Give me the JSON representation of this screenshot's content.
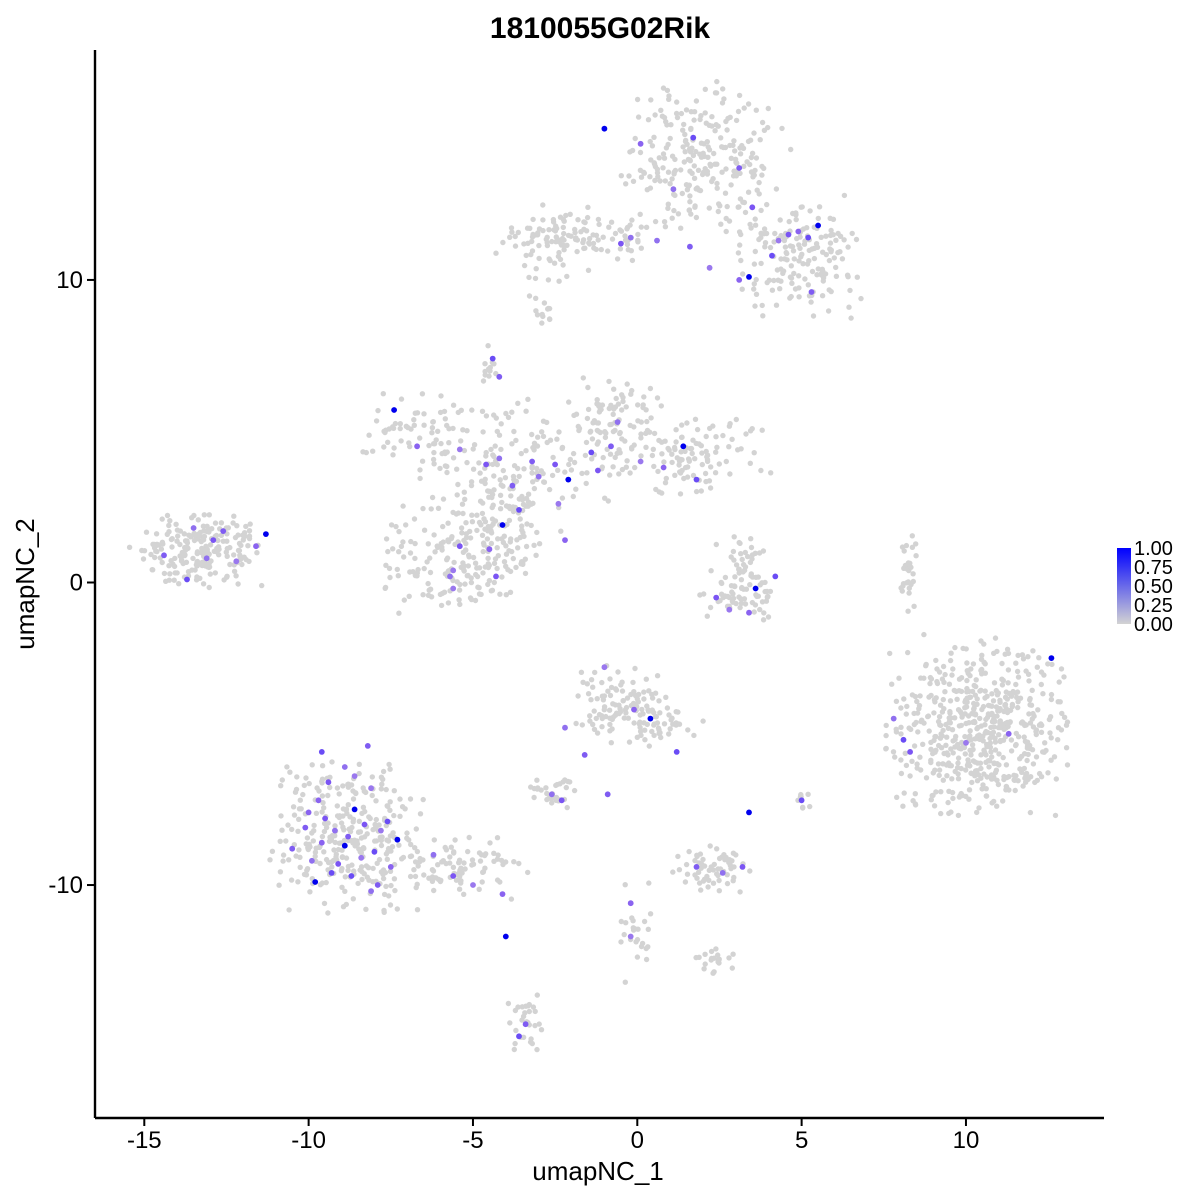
{
  "chart_data": {
    "type": "scatter",
    "title": "1810055G02Rik",
    "xlabel": "umapNC_1",
    "ylabel": "umapNC_2",
    "xlim": [
      -16.5,
      14.2
    ],
    "ylim": [
      -17.7,
      17.6
    ],
    "x_ticks": [
      -15,
      -10,
      -5,
      0,
      5,
      10
    ],
    "x_tick_labels": [
      "-15",
      "-10",
      "-5",
      "0",
      "5",
      "10"
    ],
    "y_ticks": [
      -10,
      0,
      10
    ],
    "y_tick_labels": [
      "-10",
      "0",
      "10"
    ],
    "grid": false,
    "legend": {
      "placement": "right",
      "labels": [
        "1.00",
        "0.75",
        "0.50",
        "0.25",
        "0.00"
      ],
      "values": [
        1.0,
        0.75,
        0.5,
        0.25,
        0.0
      ],
      "low_color": "#d3d3d3",
      "high_color": "#0000ff"
    },
    "clusters": [
      {
        "cx": 2.0,
        "cy": 14.0,
        "sx": 1.3,
        "sy": 1.2,
        "n": 240
      },
      {
        "cx": 4.8,
        "cy": 10.8,
        "sx": 1.0,
        "sy": 1.0,
        "n": 170
      },
      {
        "cx": -1.5,
        "cy": 11.4,
        "sx": 1.4,
        "sy": 0.35,
        "n": 90
      },
      {
        "cx": -2.6,
        "cy": 11.1,
        "sx": 0.6,
        "sy": 0.8,
        "n": 45
      },
      {
        "cx": -6.5,
        "cy": 5.0,
        "sx": 0.9,
        "sy": 0.6,
        "n": 65
      },
      {
        "cx": -3.6,
        "cy": 4.0,
        "sx": 1.4,
        "sy": 1.0,
        "n": 140
      },
      {
        "cx": -0.6,
        "cy": 5.2,
        "sx": 0.8,
        "sy": 0.8,
        "n": 80
      },
      {
        "cx": 1.5,
        "cy": 4.2,
        "sx": 1.2,
        "sy": 0.6,
        "n": 110
      },
      {
        "cx": -5.5,
        "cy": 0.8,
        "sx": 1.1,
        "sy": 0.9,
        "n": 170
      },
      {
        "cx": -4.0,
        "cy": 2.2,
        "sx": 0.8,
        "sy": 1.0,
        "n": 80
      },
      {
        "cx": -4.5,
        "cy": 7.2,
        "sx": 0.15,
        "sy": 0.35,
        "n": 12
      },
      {
        "cx": -13.3,
        "cy": 1.1,
        "sx": 1.0,
        "sy": 0.6,
        "n": 210
      },
      {
        "cx": 3.1,
        "cy": 0.3,
        "sx": 0.4,
        "sy": 0.6,
        "n": 55
      },
      {
        "cx": 3.2,
        "cy": -0.6,
        "sx": 0.6,
        "sy": 0.3,
        "n": 40
      },
      {
        "cx": 10.4,
        "cy": -4.8,
        "sx": 1.3,
        "sy": 1.4,
        "n": 560
      },
      {
        "cx": 8.3,
        "cy": 0.3,
        "sx": 0.15,
        "sy": 0.7,
        "n": 28
      },
      {
        "cx": -0.6,
        "cy": -4.0,
        "sx": 0.7,
        "sy": 0.6,
        "n": 100
      },
      {
        "cx": 0.8,
        "cy": -4.6,
        "sx": 0.6,
        "sy": 0.4,
        "n": 40
      },
      {
        "cx": -8.8,
        "cy": -8.3,
        "sx": 1.1,
        "sy": 1.2,
        "n": 300
      },
      {
        "cx": -5.5,
        "cy": -9.5,
        "sx": 1.0,
        "sy": 0.5,
        "n": 90
      },
      {
        "cx": -2.6,
        "cy": -6.9,
        "sx": 0.35,
        "sy": 0.25,
        "n": 30
      },
      {
        "cx": 2.3,
        "cy": -9.5,
        "sx": 0.6,
        "sy": 0.4,
        "n": 60
      },
      {
        "cx": 0.0,
        "cy": -11.5,
        "sx": 0.3,
        "sy": 0.8,
        "n": 25
      },
      {
        "cx": 2.3,
        "cy": -12.5,
        "sx": 0.35,
        "sy": 0.2,
        "n": 20
      },
      {
        "cx": -3.4,
        "cy": -14.7,
        "sx": 0.25,
        "sy": 0.6,
        "n": 30
      },
      {
        "cx": 5.1,
        "cy": -7.3,
        "sx": 0.12,
        "sy": 0.15,
        "n": 8
      },
      {
        "cx": -2.8,
        "cy": 9.0,
        "sx": 0.2,
        "sy": 0.25,
        "n": 12
      }
    ],
    "expressing_cells": [
      [
        -9.6,
        -5.6
      ],
      [
        -8.2,
        -5.4
      ],
      [
        -8.9,
        -6.1
      ],
      [
        -9.4,
        -6.6
      ],
      [
        -8.1,
        -6.8
      ],
      [
        -9.7,
        -7.2
      ],
      [
        -8.6,
        -7.5
      ],
      [
        -7.6,
        -7.9
      ],
      [
        -10.1,
        -8.1
      ],
      [
        -9.2,
        -8.2
      ],
      [
        -8.3,
        -8.0
      ],
      [
        -7.8,
        -8.2
      ],
      [
        -9.6,
        -8.6
      ],
      [
        -8.9,
        -8.7
      ],
      [
        -8.0,
        -8.9
      ],
      [
        -10.5,
        -8.8
      ],
      [
        -9.9,
        -9.2
      ],
      [
        -9.1,
        -9.3
      ],
      [
        -8.4,
        -9.1
      ],
      [
        -7.5,
        -9.4
      ],
      [
        -9.8,
        -9.9
      ],
      [
        -8.7,
        -9.7
      ],
      [
        -7.9,
        -10.0
      ],
      [
        -8.1,
        -10.2
      ],
      [
        -9.5,
        -7.8
      ],
      [
        -8.6,
        -6.4
      ],
      [
        -10.0,
        -7.6
      ],
      [
        -7.3,
        -8.5
      ],
      [
        -9.3,
        -9.6
      ],
      [
        -8.8,
        -8.4
      ],
      [
        -6.2,
        -9.0
      ],
      [
        -5.6,
        -9.7
      ],
      [
        -5.0,
        -10.0
      ],
      [
        -4.1,
        -10.3
      ],
      [
        -4.0,
        -11.7
      ],
      [
        -3.6,
        -15.0
      ],
      [
        -3.4,
        -14.6
      ],
      [
        -2.6,
        -7.0
      ],
      [
        -2.3,
        -7.2
      ],
      [
        -1.0,
        -2.8
      ],
      [
        -0.1,
        -4.2
      ],
      [
        0.4,
        -4.5
      ],
      [
        1.2,
        -5.6
      ],
      [
        -1.6,
        -5.7
      ],
      [
        -2.2,
        -4.8
      ],
      [
        2.4,
        -0.5
      ],
      [
        2.8,
        -0.9
      ],
      [
        3.4,
        -1.0
      ],
      [
        3.6,
        -0.2
      ],
      [
        4.2,
        0.2
      ],
      [
        1.8,
        -9.4
      ],
      [
        2.6,
        -9.6
      ],
      [
        3.2,
        -9.4
      ],
      [
        -0.2,
        -11.7
      ],
      [
        -0.2,
        -10.6
      ],
      [
        3.4,
        -7.6
      ],
      [
        5.0,
        -7.2
      ],
      [
        -0.9,
        -7.0
      ],
      [
        7.8,
        -4.5
      ],
      [
        8.3,
        -5.6
      ],
      [
        10.0,
        -5.3
      ],
      [
        11.3,
        -5.0
      ],
      [
        12.6,
        -2.5
      ],
      [
        8.1,
        -5.2
      ],
      [
        -14.4,
        0.9
      ],
      [
        -13.1,
        0.8
      ],
      [
        -12.9,
        1.4
      ],
      [
        -12.2,
        0.7
      ],
      [
        -11.6,
        1.2
      ],
      [
        -11.3,
        1.6
      ],
      [
        -13.7,
        0.1
      ],
      [
        -12.6,
        1.7
      ],
      [
        -13.5,
        1.8
      ],
      [
        -5.4,
        1.2
      ],
      [
        -5.6,
        0.4
      ],
      [
        -4.5,
        1.1
      ],
      [
        -4.1,
        1.9
      ],
      [
        -3.6,
        2.4
      ],
      [
        -3.8,
        3.2
      ],
      [
        -3.0,
        3.5
      ],
      [
        -2.5,
        3.9
      ],
      [
        -2.4,
        2.6
      ],
      [
        -2.2,
        1.4
      ],
      [
        -2.1,
        3.4
      ],
      [
        -1.4,
        4.3
      ],
      [
        -0.8,
        4.5
      ],
      [
        -0.6,
        5.3
      ],
      [
        -1.2,
        3.7
      ],
      [
        0.1,
        4.0
      ],
      [
        0.8,
        3.8
      ],
      [
        1.4,
        4.5
      ],
      [
        1.8,
        3.4
      ],
      [
        -3.2,
        4.0
      ],
      [
        -4.2,
        4.1
      ],
      [
        -4.6,
        3.9
      ],
      [
        -5.4,
        4.4
      ],
      [
        -6.7,
        4.5
      ],
      [
        -7.4,
        5.7
      ],
      [
        -4.4,
        7.4
      ],
      [
        -4.2,
        6.8
      ],
      [
        -5.7,
        0.2
      ],
      [
        -4.3,
        0.2
      ],
      [
        -5.6,
        -0.2
      ],
      [
        0.1,
        14.5
      ],
      [
        -1.0,
        15.0
      ],
      [
        1.7,
        14.7
      ],
      [
        3.1,
        13.7
      ],
      [
        1.1,
        13.0
      ],
      [
        3.5,
        12.4
      ],
      [
        4.3,
        11.3
      ],
      [
        4.9,
        11.6
      ],
      [
        5.5,
        11.8
      ],
      [
        5.2,
        11.4
      ],
      [
        1.6,
        11.1
      ],
      [
        0.6,
        11.3
      ],
      [
        -0.5,
        11.2
      ],
      [
        2.2,
        10.4
      ],
      [
        3.1,
        10.0
      ],
      [
        3.4,
        10.1
      ],
      [
        4.1,
        10.8
      ],
      [
        5.3,
        9.6
      ],
      [
        -0.2,
        11.4
      ],
      [
        4.6,
        11.5
      ]
    ]
  }
}
